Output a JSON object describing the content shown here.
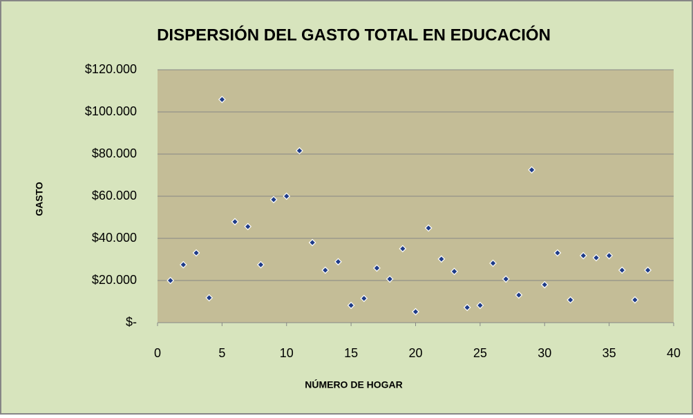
{
  "chart_data": {
    "type": "scatter",
    "title": "DISPERSIÓN DEL GASTO TOTAL EN EDUCACIÓN",
    "xlabel": "NÚMERO DE HOGAR",
    "ylabel": "GASTO",
    "x": [
      1,
      2,
      3,
      4,
      5,
      6,
      7,
      8,
      9,
      10,
      11,
      12,
      13,
      14,
      15,
      16,
      17,
      18,
      19,
      20,
      21,
      22,
      23,
      24,
      25,
      26,
      27,
      28,
      29,
      30,
      31,
      32,
      33,
      34,
      35,
      36,
      37,
      38
    ],
    "values": [
      20000,
      27500,
      33100,
      11800,
      105900,
      47900,
      45600,
      27500,
      58400,
      60000,
      81600,
      38000,
      24900,
      28900,
      8200,
      11500,
      25900,
      20700,
      35100,
      5200,
      44900,
      30200,
      24300,
      7200,
      8200,
      28200,
      20700,
      13100,
      72500,
      18000,
      33100,
      10800,
      31800,
      30800,
      31800,
      24900,
      10800,
      24900
    ],
    "color": "#1f3c88",
    "xlim": [
      0,
      40
    ],
    "xticks": [
      0,
      5,
      10,
      15,
      20,
      25,
      30,
      35,
      40
    ],
    "ylim": [
      0,
      120000
    ],
    "yticks": [
      {
        "value": 0,
        "label": "$-"
      },
      {
        "value": 20000,
        "label": "$20.000"
      },
      {
        "value": 40000,
        "label": "$40.000"
      },
      {
        "value": 60000,
        "label": "$60.000"
      },
      {
        "value": 80000,
        "label": "$80.000"
      },
      {
        "value": 100000,
        "label": "$100.000"
      },
      {
        "value": 120000,
        "label": "$120.000"
      }
    ],
    "grid": true
  }
}
